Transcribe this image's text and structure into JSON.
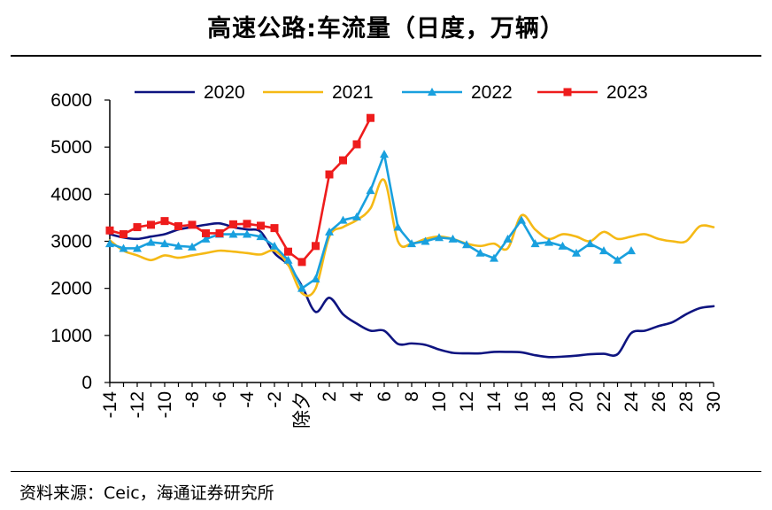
{
  "title": "高速公路:车流量（日度，万辆）",
  "source": "资料来源：Ceic，海通证券研究所",
  "chart_data": {
    "type": "line",
    "title": "高速公路:车流量（日度，万辆）",
    "xlabel": "",
    "ylabel": "",
    "xlim": [
      -14,
      30
    ],
    "ylim": [
      0,
      6000
    ],
    "yticks": [
      0,
      1000,
      2000,
      3000,
      4000,
      5000,
      6000
    ],
    "xticks": [
      {
        "x": -14,
        "label": "-14"
      },
      {
        "x": -12,
        "label": "-12"
      },
      {
        "x": -10,
        "label": "-10"
      },
      {
        "x": -8,
        "label": "-8"
      },
      {
        "x": -6,
        "label": "-6"
      },
      {
        "x": -4,
        "label": "-4"
      },
      {
        "x": -2,
        "label": "-2"
      },
      {
        "x": 0,
        "label": "除夕"
      },
      {
        "x": 2,
        "label": "2"
      },
      {
        "x": 4,
        "label": "4"
      },
      {
        "x": 6,
        "label": "6"
      },
      {
        "x": 8,
        "label": "8"
      },
      {
        "x": 10,
        "label": "10"
      },
      {
        "x": 12,
        "label": "12"
      },
      {
        "x": 14,
        "label": "14"
      },
      {
        "x": 16,
        "label": "16"
      },
      {
        "x": 18,
        "label": "18"
      },
      {
        "x": 20,
        "label": "20"
      },
      {
        "x": 22,
        "label": "22"
      },
      {
        "x": 24,
        "label": "24"
      },
      {
        "x": 26,
        "label": "26"
      },
      {
        "x": 28,
        "label": "28"
      },
      {
        "x": 30,
        "label": "30"
      }
    ],
    "grid": false,
    "legend": "top",
    "series": [
      {
        "name": "2020",
        "color": "#0e1480",
        "marker": "none",
        "x": [
          -14,
          -13,
          -12,
          -11,
          -10,
          -9,
          -8,
          -7,
          -6,
          -5,
          -4,
          -3,
          -2,
          -1,
          0,
          1,
          2,
          3,
          4,
          5,
          6,
          7,
          8,
          9,
          10,
          11,
          12,
          13,
          14,
          15,
          16,
          17,
          18,
          19,
          20,
          21,
          22,
          23,
          24,
          25,
          26,
          27,
          28,
          29,
          30
        ],
        "values": [
          3150,
          3080,
          3050,
          3100,
          3150,
          3250,
          3300,
          3350,
          3380,
          3300,
          3250,
          3200,
          2750,
          2500,
          2050,
          1500,
          1800,
          1450,
          1250,
          1100,
          1100,
          820,
          830,
          800,
          700,
          630,
          620,
          620,
          650,
          650,
          640,
          580,
          540,
          550,
          570,
          600,
          610,
          600,
          1050,
          1100,
          1200,
          1280,
          1450,
          1580,
          1620
        ]
      },
      {
        "name": "2021",
        "color": "#f5b915",
        "marker": "none",
        "x": [
          -14,
          -13,
          -12,
          -11,
          -10,
          -9,
          -8,
          -7,
          -6,
          -5,
          -4,
          -3,
          -2,
          -1,
          0,
          1,
          2,
          3,
          4,
          5,
          6,
          7,
          8,
          9,
          10,
          11,
          12,
          13,
          14,
          15,
          16,
          17,
          18,
          19,
          20,
          21,
          22,
          23,
          24,
          25,
          26,
          27,
          28,
          29,
          30
        ],
        "values": [
          3020,
          2800,
          2700,
          2600,
          2700,
          2650,
          2700,
          2750,
          2800,
          2780,
          2750,
          2720,
          2800,
          2500,
          1900,
          2000,
          3100,
          3300,
          3450,
          3700,
          4300,
          3000,
          2950,
          3050,
          3100,
          3050,
          2950,
          2900,
          2950,
          2850,
          3550,
          3250,
          3050,
          3150,
          3100,
          3000,
          3200,
          3050,
          3100,
          3150,
          3050,
          3000,
          3000,
          3320,
          3300
        ]
      },
      {
        "name": "2022",
        "color": "#19a0de",
        "marker": "triangle",
        "x": [
          -14,
          -13,
          -12,
          -11,
          -10,
          -9,
          -8,
          -7,
          -6,
          -5,
          -4,
          -3,
          -2,
          -1,
          0,
          1,
          2,
          3,
          4,
          5,
          6,
          7,
          8,
          9,
          10,
          11,
          12,
          13,
          14,
          15,
          16,
          17,
          18,
          19,
          20,
          21,
          22,
          23,
          24
        ],
        "values": [
          2950,
          2850,
          2850,
          2980,
          2950,
          2900,
          2880,
          3050,
          3150,
          3150,
          3150,
          3100,
          2900,
          2600,
          2000,
          2200,
          3200,
          3450,
          3520,
          4080,
          4850,
          3300,
          2950,
          3000,
          3080,
          3050,
          2930,
          2750,
          2640,
          3050,
          3450,
          2950,
          2980,
          2900,
          2750,
          2950,
          2800,
          2600,
          2800
        ]
      },
      {
        "name": "2023",
        "color": "#ee1c1c",
        "marker": "square",
        "x": [
          -14,
          -13,
          -12,
          -11,
          -10,
          -9,
          -8,
          -7,
          -6,
          -5,
          -4,
          -3,
          -2,
          -1,
          0,
          1,
          2,
          3,
          4,
          5
        ],
        "values": [
          3230,
          3150,
          3300,
          3350,
          3430,
          3320,
          3350,
          3170,
          3170,
          3360,
          3370,
          3330,
          3280,
          2780,
          2560,
          2900,
          4420,
          4720,
          5060,
          5620
        ]
      }
    ]
  }
}
